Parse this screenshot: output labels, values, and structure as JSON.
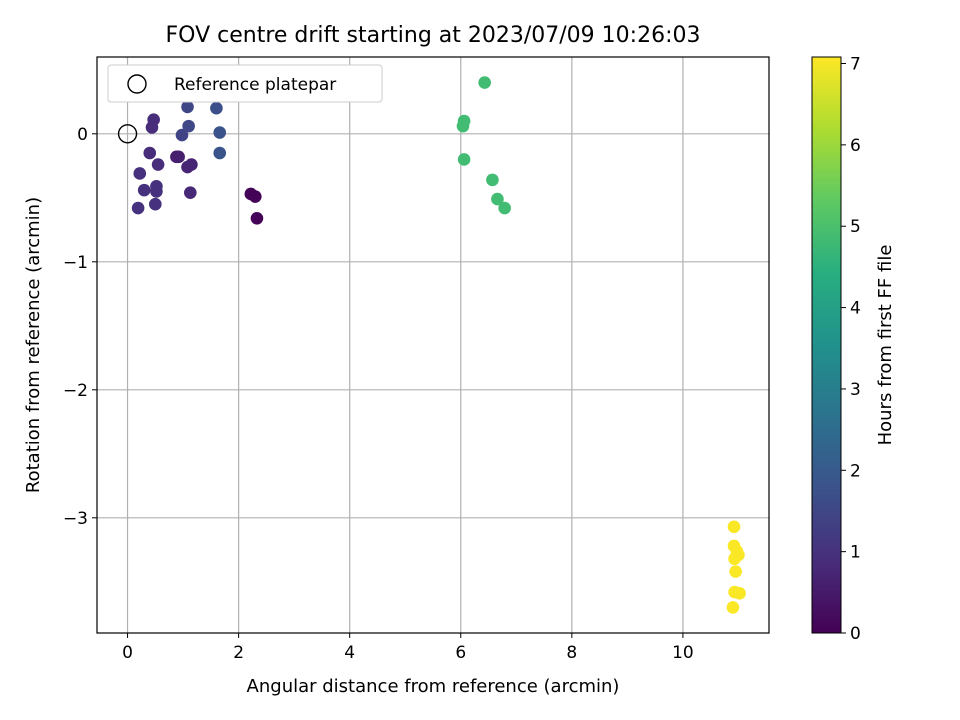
{
  "chart_data": {
    "type": "scatter",
    "title": "FOV centre drift starting at 2023/07/09 10:26:03",
    "xlabel": "Angular distance from reference (arcmin)",
    "ylabel": "Rotation from reference (arcmin)",
    "xlim": [
      -0.55,
      11.55
    ],
    "ylim": [
      -3.9,
      0.6
    ],
    "xticks": [
      0,
      2,
      4,
      6,
      8,
      10
    ],
    "yticks": [
      -3,
      -2,
      -1,
      0
    ],
    "grid": true,
    "legend": {
      "position": "top-left",
      "entries": [
        "Reference platepar"
      ]
    },
    "reference_point": {
      "x": 0,
      "y": 0
    },
    "colorbar": {
      "label": "Hours from first FF file",
      "min": 0,
      "max": 7.08,
      "ticks": [
        0,
        1,
        2,
        3,
        4,
        5,
        6,
        7
      ],
      "colormap": "viridis"
    },
    "points": [
      {
        "x": 2.22,
        "y": -0.47,
        "h": 0.05
      },
      {
        "x": 2.3,
        "y": -0.49,
        "h": 0.05
      },
      {
        "x": 2.33,
        "y": -0.66,
        "h": 0.05
      },
      {
        "x": 0.88,
        "y": -0.18,
        "h": 0.6
      },
      {
        "x": 0.92,
        "y": -0.18,
        "h": 0.6
      },
      {
        "x": 1.08,
        "y": -0.26,
        "h": 0.7
      },
      {
        "x": 1.15,
        "y": -0.24,
        "h": 0.7
      },
      {
        "x": 1.13,
        "y": -0.46,
        "h": 0.8
      },
      {
        "x": 0.47,
        "y": 0.11,
        "h": 0.9
      },
      {
        "x": 0.44,
        "y": 0.05,
        "h": 0.9
      },
      {
        "x": 0.4,
        "y": -0.15,
        "h": 0.9
      },
      {
        "x": 0.55,
        "y": -0.24,
        "h": 0.9
      },
      {
        "x": 0.22,
        "y": -0.31,
        "h": 1.0
      },
      {
        "x": 0.3,
        "y": -0.44,
        "h": 1.0
      },
      {
        "x": 0.52,
        "y": -0.41,
        "h": 1.0
      },
      {
        "x": 0.52,
        "y": -0.45,
        "h": 1.0
      },
      {
        "x": 0.5,
        "y": -0.55,
        "h": 1.0
      },
      {
        "x": 0.19,
        "y": -0.58,
        "h": 1.0
      },
      {
        "x": 0.98,
        "y": -0.01,
        "h": 1.4
      },
      {
        "x": 1.08,
        "y": 0.21,
        "h": 1.5
      },
      {
        "x": 1.1,
        "y": 0.06,
        "h": 1.5
      },
      {
        "x": 1.6,
        "y": 0.2,
        "h": 1.7
      },
      {
        "x": 1.66,
        "y": 0.01,
        "h": 1.8
      },
      {
        "x": 1.66,
        "y": -0.15,
        "h": 1.8
      },
      {
        "x": 6.43,
        "y": 0.4,
        "h": 4.9
      },
      {
        "x": 6.06,
        "y": 0.1,
        "h": 4.9
      },
      {
        "x": 6.04,
        "y": 0.06,
        "h": 4.9
      },
      {
        "x": 6.06,
        "y": -0.2,
        "h": 4.9
      },
      {
        "x": 6.57,
        "y": -0.36,
        "h": 4.9
      },
      {
        "x": 6.66,
        "y": -0.51,
        "h": 4.9
      },
      {
        "x": 6.79,
        "y": -0.58,
        "h": 4.9
      },
      {
        "x": 10.92,
        "y": -3.07,
        "h": 7.05
      },
      {
        "x": 10.92,
        "y": -3.22,
        "h": 7.05
      },
      {
        "x": 10.97,
        "y": -3.26,
        "h": 7.05
      },
      {
        "x": 11.0,
        "y": -3.29,
        "h": 7.05
      },
      {
        "x": 10.93,
        "y": -3.32,
        "h": 7.05
      },
      {
        "x": 10.95,
        "y": -3.42,
        "h": 7.05
      },
      {
        "x": 10.93,
        "y": -3.58,
        "h": 7.05
      },
      {
        "x": 11.02,
        "y": -3.59,
        "h": 7.05
      },
      {
        "x": 10.9,
        "y": -3.7,
        "h": 7.05
      }
    ]
  }
}
